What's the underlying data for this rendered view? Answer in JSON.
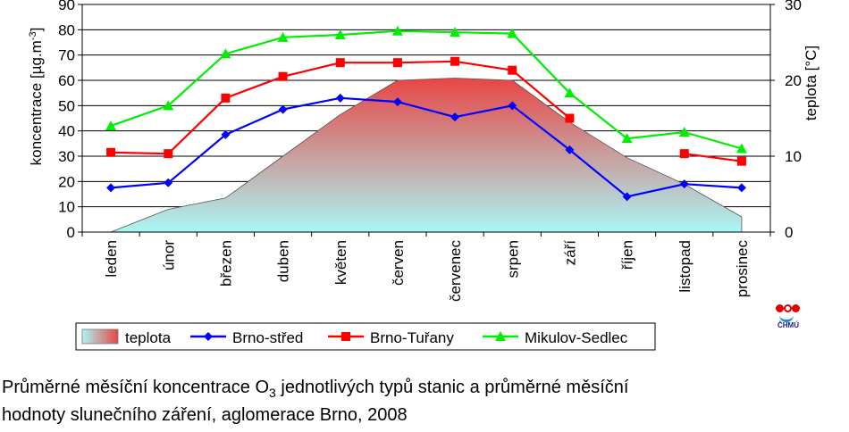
{
  "chart_data": {
    "type": "line",
    "categories": [
      "leden",
      "únor",
      "březen",
      "duben",
      "květen",
      "červen",
      "červenec",
      "srpen",
      "září",
      "říjen",
      "listopad",
      "prosinec"
    ],
    "ylabel": "koncentrace [µg.m-3]",
    "ylabel_parts": {
      "base": "koncentrace [µg.m",
      "sup": "-3",
      "end": "]"
    },
    "y2label": "teplota [°C]",
    "ylim": [
      0,
      90
    ],
    "y_ticks": [
      "0",
      "10",
      "20",
      "30",
      "40",
      "50",
      "60",
      "70",
      "80",
      "90"
    ],
    "y2lim": [
      0,
      30
    ],
    "y2_ticks": [
      "0",
      "10",
      "20",
      "30"
    ],
    "grid": true,
    "legend_position": "bottom",
    "series": [
      {
        "name": "teplota",
        "kind": "area",
        "axis": "right",
        "color_top": "#e84646",
        "color_bottom": "#aaf6f6",
        "values": [
          -0.2,
          3.0,
          4.5,
          10.0,
          15.5,
          20.0,
          20.3,
          20.0,
          14.5,
          9.8,
          6.3,
          2.0
        ]
      },
      {
        "name": "Brno-střed",
        "kind": "line",
        "axis": "left",
        "color": "#0000ff",
        "marker": "diamond",
        "values": [
          17.5,
          19.5,
          38.5,
          48.5,
          53,
          51.5,
          45.5,
          50,
          32.5,
          14,
          19,
          17.5
        ]
      },
      {
        "name": "Brno-Tuřany",
        "kind": "line",
        "axis": "left",
        "color": "#ff0000",
        "marker": "square",
        "values": [
          31.5,
          31,
          53,
          61.5,
          67,
          67,
          67.5,
          64,
          45,
          null,
          31,
          28
        ]
      },
      {
        "name": "Mikulov-Sedlec",
        "kind": "line",
        "axis": "left",
        "color": "#00ee00",
        "marker": "triangle",
        "values": [
          42,
          50,
          70.5,
          77,
          78,
          79.5,
          79,
          78.5,
          55,
          37,
          39.5,
          33
        ]
      }
    ]
  },
  "logo_text": "ČHMÚ",
  "caption": {
    "line1_pre": "Průměrné měsíční koncentrace O",
    "line1_sub": "3",
    "line1_post": " jednotlivých typů stanic a průměrné měsíční",
    "line2": "hodnoty slunečního záření, aglomerace Brno, 2008"
  }
}
